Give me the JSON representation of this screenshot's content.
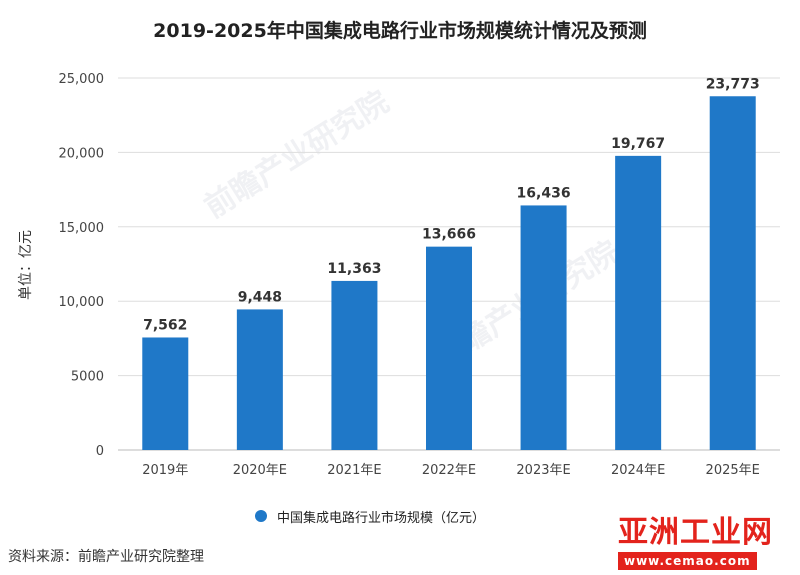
{
  "title": "2019-2025年中国集成电路行业市场规模统计情况及预测",
  "chart_data": {
    "type": "bar",
    "categories": [
      "2019年",
      "2020年E",
      "2021年E",
      "2022年E",
      "2023年E",
      "2024年E",
      "2025年E"
    ],
    "series": [
      {
        "name": "中国集成电路行业市场规模（亿元）",
        "values": [
          7562,
          9448,
          11363,
          13666,
          16436,
          19767,
          23773
        ]
      }
    ],
    "data_labels": [
      "7,562",
      "9,448",
      "11,363",
      "13,666",
      "16,436",
      "19,767",
      "23,773"
    ],
    "ylabel": "单位：亿元",
    "ylim": [
      0,
      25000
    ],
    "yticks": [
      0,
      5000,
      10000,
      15000,
      20000,
      25000
    ],
    "ytick_labels": [
      "0",
      "5000",
      "10,000",
      "15,000",
      "20,000",
      "25,000"
    ],
    "grid": true,
    "legend_position": "bottom",
    "bar_color": "#1f78c8"
  },
  "legend": {
    "label": "中国集成电路行业市场规模（亿元）"
  },
  "source": "资料来源：前瞻产业研究院整理",
  "watermark": {
    "text": "前瞻产业研究院"
  },
  "logo": {
    "main": "亚洲工业网",
    "url": "www.cemao.com"
  }
}
